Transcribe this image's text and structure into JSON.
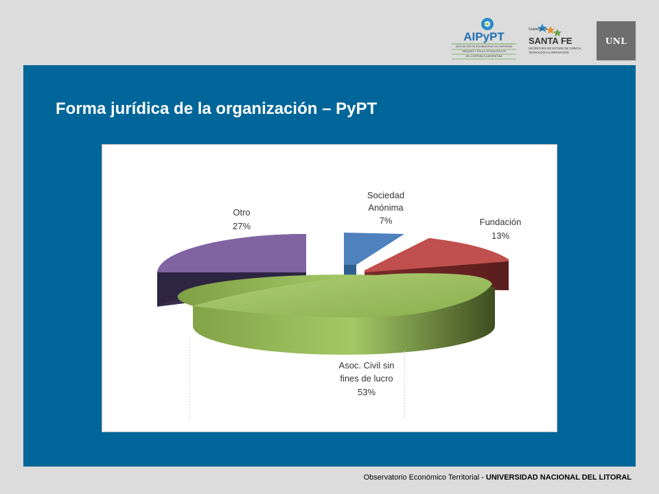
{
  "header": {
    "logo_aipypt_text": "AIPyPT",
    "logo_aipypt_sub1": "ASOCIACIÓN DE INCUBADORAS DE EMPRESAS",
    "logo_aipypt_sub2": "PARQUES Y POLOS TECNOLÓGICOS",
    "logo_aipypt_sub3": "DE LA REPÚBLICA ARGENTINA",
    "logo_santafe_gob": "Gobierno de",
    "logo_santafe_name": "SANTA FE",
    "logo_santafe_sub1": "SECRETARÍA DE ESTADO DE CIENCIA,",
    "logo_santafe_sub2": "TECNOLOGÍA E INNOVACIÓN",
    "logo_unl": "UNL"
  },
  "slide": {
    "title": "Forma jurídica de la organización – PyPT"
  },
  "chart_data": {
    "type": "pie",
    "title": "",
    "slices": [
      {
        "label": [
          "Sociedad",
          "Anónima"
        ],
        "percent_label": "7%",
        "value": 7,
        "color": "#4f81bd"
      },
      {
        "label": [
          "Fundación"
        ],
        "percent_label": "13%",
        "value": 13,
        "color": "#c0504d"
      },
      {
        "label": [
          "Asoc. Civil sin",
          "fines de lucro"
        ],
        "percent_label": "53%",
        "value": 53,
        "color": "#9bbb59"
      },
      {
        "label": [
          "Otro"
        ],
        "percent_label": "27%",
        "value": 27,
        "color": "#8064a2"
      }
    ],
    "style": "3d-exploded"
  },
  "footer": {
    "lead": "Observatorio Económico Territorial - ",
    "strong": "UNIVERSIDAD NACIONAL DEL LITORAL"
  }
}
